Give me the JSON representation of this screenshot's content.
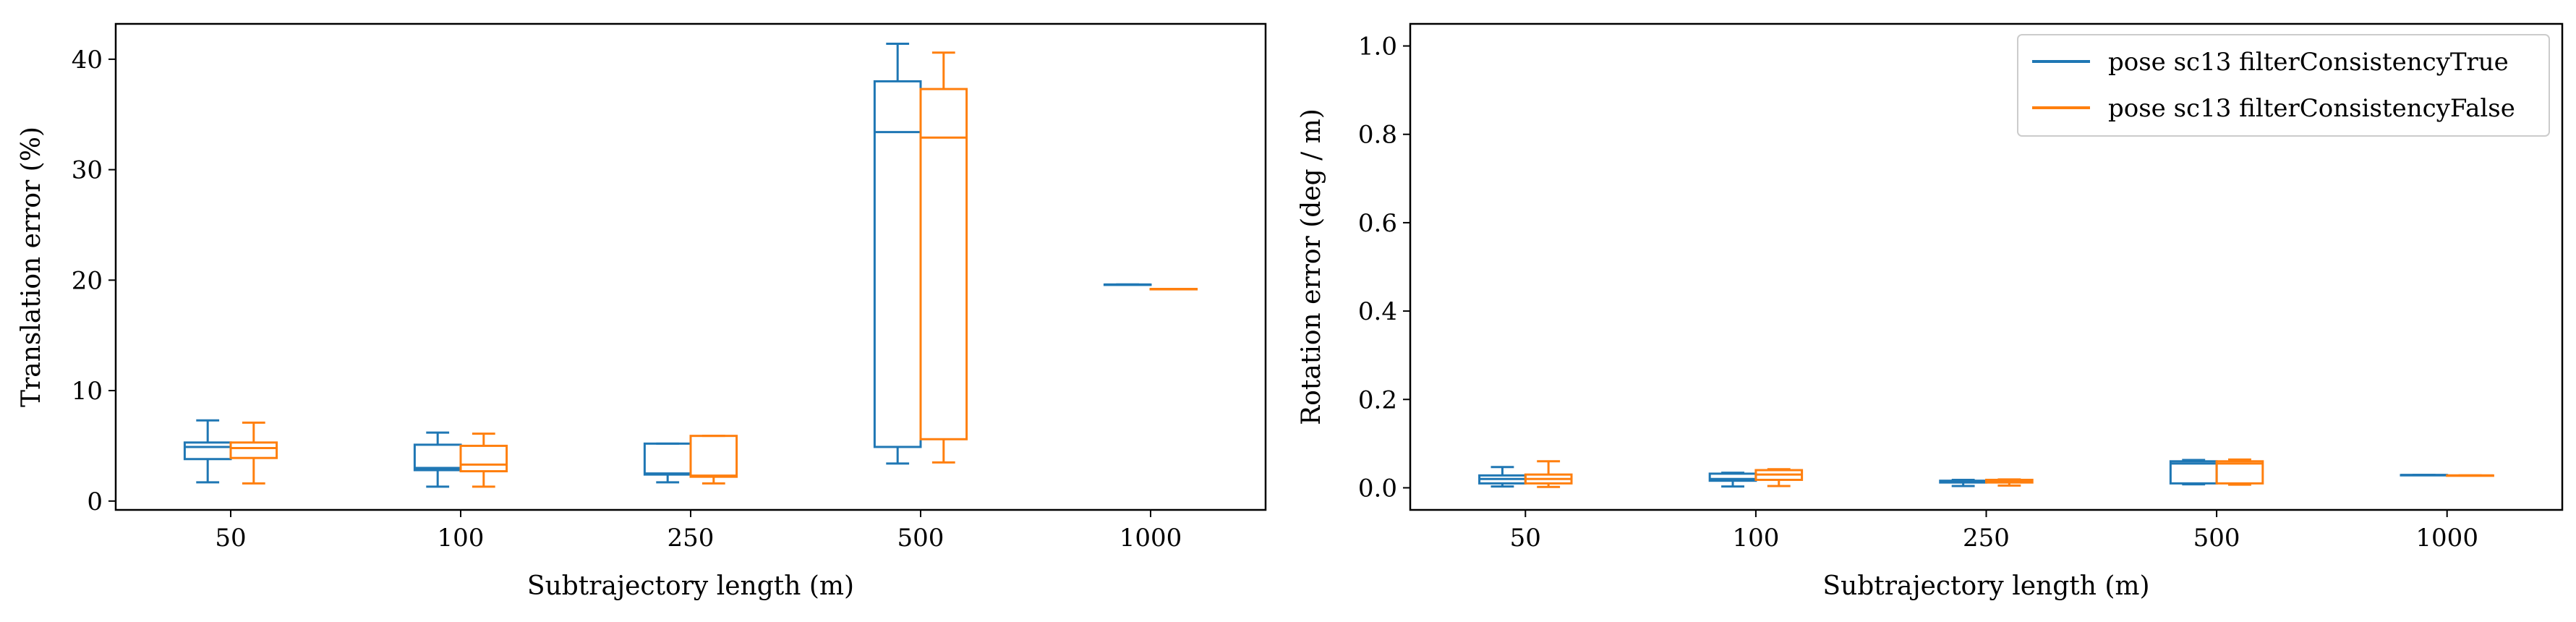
{
  "colors": {
    "series_true": "#1f77b4",
    "series_false": "#ff7f0e",
    "axis": "#000000"
  },
  "chart_data": [
    {
      "type": "box",
      "xlabel": "Subtrajectory length (m)",
      "ylabel": "Translation error (%)",
      "categories": [
        "50",
        "100",
        "250",
        "500",
        "1000"
      ],
      "ylim": [
        -0.8,
        43.2
      ],
      "yticks": [
        0,
        10,
        20,
        30,
        40
      ],
      "ytick_labels": [
        "0",
        "10",
        "20",
        "30",
        "40"
      ],
      "grid": false,
      "series": [
        {
          "name": "pose sc13 filterConsistencyTrue",
          "boxes": [
            {
              "whislo": 1.7,
              "q1": 3.8,
              "med": 4.9,
              "q3": 5.3,
              "whishi": 7.3
            },
            {
              "whislo": 1.3,
              "q1": 2.8,
              "med": 3.0,
              "q3": 5.1,
              "whishi": 6.2
            },
            {
              "whislo": 1.7,
              "q1": 2.4,
              "med": 2.5,
              "q3": 5.2,
              "whishi": 5.2
            },
            {
              "whislo": 3.4,
              "q1": 4.9,
              "med": 33.4,
              "q3": 38.0,
              "whishi": 41.4
            },
            {
              "whislo": 19.6,
              "q1": 19.6,
              "med": 19.6,
              "q3": 19.6,
              "whishi": 19.6
            }
          ]
        },
        {
          "name": "pose sc13 filterConsistencyFalse",
          "boxes": [
            {
              "whislo": 1.6,
              "q1": 3.9,
              "med": 4.8,
              "q3": 5.3,
              "whishi": 7.1
            },
            {
              "whislo": 1.3,
              "q1": 2.7,
              "med": 3.3,
              "q3": 5.0,
              "whishi": 6.1
            },
            {
              "whislo": 1.6,
              "q1": 2.2,
              "med": 2.3,
              "q3": 5.9,
              "whishi": 5.9
            },
            {
              "whislo": 3.5,
              "q1": 5.6,
              "med": 32.9,
              "q3": 37.3,
              "whishi": 40.6
            },
            {
              "whislo": 19.2,
              "q1": 19.2,
              "med": 19.2,
              "q3": 19.2,
              "whishi": 19.2
            }
          ]
        }
      ]
    },
    {
      "type": "box",
      "xlabel": "Subtrajectory length (m)",
      "ylabel": "Rotation error (deg / m)",
      "categories": [
        "50",
        "100",
        "250",
        "500",
        "1000"
      ],
      "ylim": [
        -0.05,
        1.05
      ],
      "yticks": [
        0,
        0.2,
        0.4,
        0.6,
        0.8,
        1.0
      ],
      "ytick_labels": [
        "0.0",
        "0.2",
        "0.4",
        "0.6",
        "0.8",
        "1.0"
      ],
      "grid": false,
      "legend": {
        "position": "top-right",
        "entries": [
          "pose sc13 filterConsistencyTrue",
          "pose sc13 filterConsistencyFalse"
        ]
      },
      "series": [
        {
          "name": "pose sc13 filterConsistencyTrue",
          "boxes": [
            {
              "whislo": 0.003,
              "q1": 0.01,
              "med": 0.02,
              "q3": 0.028,
              "whishi": 0.047
            },
            {
              "whislo": 0.003,
              "q1": 0.016,
              "med": 0.02,
              "q3": 0.032,
              "whishi": 0.034
            },
            {
              "whislo": 0.004,
              "q1": 0.012,
              "med": 0.014,
              "q3": 0.016,
              "whishi": 0.018
            },
            {
              "whislo": 0.008,
              "q1": 0.01,
              "med": 0.055,
              "q3": 0.06,
              "whishi": 0.063
            },
            {
              "whislo": 0.029,
              "q1": 0.029,
              "med": 0.029,
              "q3": 0.029,
              "whishi": 0.029
            }
          ]
        },
        {
          "name": "pose sc13 filterConsistencyFalse",
          "boxes": [
            {
              "whislo": 0.002,
              "q1": 0.01,
              "med": 0.02,
              "q3": 0.03,
              "whishi": 0.06
            },
            {
              "whislo": 0.004,
              "q1": 0.018,
              "med": 0.03,
              "q3": 0.04,
              "whishi": 0.042
            },
            {
              "whislo": 0.005,
              "q1": 0.012,
              "med": 0.016,
              "q3": 0.018,
              "whishi": 0.019
            },
            {
              "whislo": 0.007,
              "q1": 0.01,
              "med": 0.055,
              "q3": 0.06,
              "whishi": 0.064
            },
            {
              "whislo": 0.028,
              "q1": 0.028,
              "med": 0.028,
              "q3": 0.028,
              "whishi": 0.028
            }
          ]
        }
      ]
    }
  ]
}
